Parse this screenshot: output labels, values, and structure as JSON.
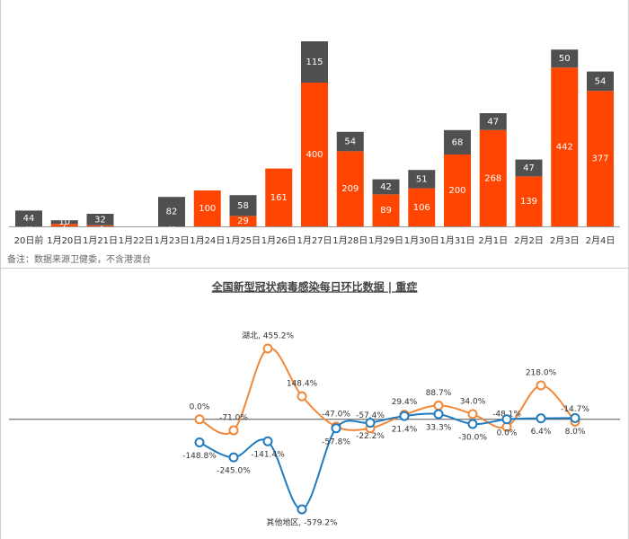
{
  "chart_data": [
    {
      "type": "bar",
      "stacked": true,
      "categories": [
        "20日前",
        "1月20日",
        "1月21日",
        "1月22日",
        "1月23日",
        "1月24日",
        "1月25日",
        "1月26日",
        "1月27日",
        "1月28日",
        "1月29日",
        "1月30日",
        "1月31日",
        "2月1日",
        "2月2日",
        "2月3日",
        "2月4日"
      ],
      "series": [
        {
          "color": "#ff4500",
          "values": [
            0,
            7,
            3,
            null,
            0,
            100,
            29,
            161,
            400,
            209,
            89,
            106,
            200,
            268,
            139,
            442,
            377
          ]
        },
        {
          "color": "#505050",
          "values": [
            44,
            10,
            32,
            null,
            82,
            null,
            58,
            null,
            115,
            54,
            42,
            51,
            68,
            47,
            47,
            50,
            54
          ]
        }
      ],
      "note": "备注：数据来源卫健委，不含港澳台"
    },
    {
      "type": "line",
      "smooth": true,
      "title": "全国新型冠状病毒感染每日环比数据 | 重症",
      "categories": [
        null,
        null,
        null,
        null,
        null,
        null,
        null,
        null,
        null,
        null,
        null,
        null
      ],
      "series": [
        {
          "color": "#f0883a",
          "values": [
            0.0,
            -71.0,
            455.2,
            148.4,
            -47.0,
            -57.4,
            29.4,
            88.7,
            34.0,
            -48.1,
            218.0,
            -14.7
          ],
          "value_labels": [
            "0.0%",
            "-71.0%",
            "湖北, 455.2%",
            "148.4%",
            "-47.0%",
            "-57.4%",
            "29.4%",
            "88.7%",
            "34.0%",
            "-48.1%",
            "218.0%",
            "-14.7%"
          ]
        },
        {
          "color": "#1f7bbf",
          "values": [
            -148.8,
            -245.0,
            -141.4,
            -579.2,
            -57.8,
            -22.2,
            21.4,
            33.3,
            -30.0,
            0.0,
            6.4,
            8.0
          ],
          "value_labels": [
            "-148.8%",
            "-245.0%",
            "-141.4%",
            "其他地区, -579.2%",
            "-57.8%",
            "-22.2%",
            "21.4%",
            "33.3%",
            "-30.0%",
            "0.0%",
            "6.4%",
            "8.0%"
          ]
        }
      ]
    }
  ]
}
